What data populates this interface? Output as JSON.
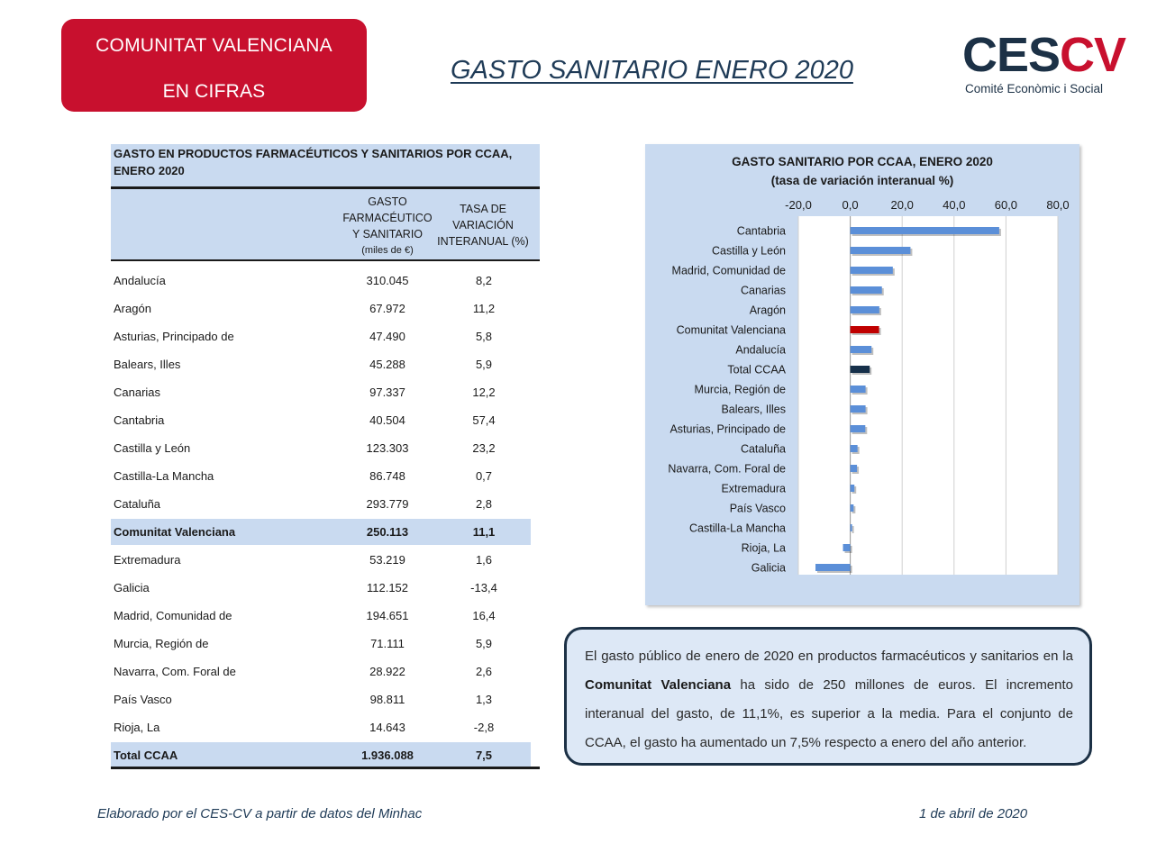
{
  "header": {
    "badge_line1": "COMUNITAT VALENCIANA",
    "badge_line2": "EN CIFRAS",
    "title": "GASTO SANITARIO ENERO 2020",
    "badge_color": "#c8102e"
  },
  "logo": {
    "mark_ces": "CES",
    "mark_cv": "CV",
    "subtitle": "Comité Econòmic i Social"
  },
  "table": {
    "title_line1": "GASTO EN PRODUCTOS FARMACÉUTICOS Y SANITARIOS POR CCAA,",
    "title_line2": "ENERO 2020",
    "col1_l1": "GASTO",
    "col1_l2": "FARMACÉUTICO",
    "col1_l3": "Y SANITARIO",
    "col1_l4": "(miles de €)",
    "col2_l1": "TASA DE",
    "col2_l2": "VARIACIÓN",
    "col2_l3": "INTERANUAL (%)",
    "rows": [
      {
        "region": "Andalucía",
        "gasto": "310.045",
        "tasa": "8,2"
      },
      {
        "region": "Aragón",
        "gasto": "67.972",
        "tasa": "11,2"
      },
      {
        "region": "Asturias, Principado de",
        "gasto": "47.490",
        "tasa": "5,8"
      },
      {
        "region": "Balears, Illes",
        "gasto": "45.288",
        "tasa": "5,9"
      },
      {
        "region": "Canarias",
        "gasto": "97.337",
        "tasa": "12,2"
      },
      {
        "region": "Cantabria",
        "gasto": "40.504",
        "tasa": "57,4"
      },
      {
        "region": "Castilla y León",
        "gasto": "123.303",
        "tasa": "23,2"
      },
      {
        "region": "Castilla-La Mancha",
        "gasto": "86.748",
        "tasa": "0,7"
      },
      {
        "region": "Cataluña",
        "gasto": "293.779",
        "tasa": "2,8"
      },
      {
        "region": "Comunitat Valenciana",
        "gasto": "250.113",
        "tasa": "11,1",
        "highlight": true
      },
      {
        "region": "Extremadura",
        "gasto": "53.219",
        "tasa": "1,6"
      },
      {
        "region": "Galicia",
        "gasto": "112.152",
        "tasa": "-13,4"
      },
      {
        "region": "Madrid, Comunidad de",
        "gasto": "194.651",
        "tasa": "16,4"
      },
      {
        "region": "Murcia, Región de",
        "gasto": "71.111",
        "tasa": "5,9"
      },
      {
        "region": "Navarra, Com. Foral de",
        "gasto": "28.922",
        "tasa": "2,6"
      },
      {
        "region": "País Vasco",
        "gasto": "98.811",
        "tasa": "1,3"
      },
      {
        "region": "Rioja, La",
        "gasto": "14.643",
        "tasa": "-2,8"
      },
      {
        "region": "Total CCAA",
        "gasto": "1.936.088",
        "tasa": "7,5",
        "highlight": true
      }
    ]
  },
  "chart_data": {
    "type": "bar",
    "orientation": "horizontal",
    "title": "GASTO SANITARIO POR CCAA, ENERO 2020",
    "subtitle": "(tasa de variación interanual %)",
    "xlim": [
      -20,
      80
    ],
    "xticks": [
      "-20,0",
      "0,0",
      "20,0",
      "40,0",
      "60,0",
      "80,0"
    ],
    "grid": true,
    "categories": [
      "Cantabria",
      "Castilla y León",
      "Madrid, Comunidad de",
      "Canarias",
      "Aragón",
      "Comunitat Valenciana",
      "Andalucía",
      "Total CCAA",
      "Murcia, Región de",
      "Balears, Illes",
      "Asturias, Principado de",
      "Cataluña",
      "Navarra, Com. Foral de",
      "Extremadura",
      "País Vasco",
      "Castilla-La Mancha",
      "Rioja, La",
      "Galicia"
    ],
    "values": [
      57.4,
      23.2,
      16.4,
      12.2,
      11.2,
      11.1,
      8.2,
      7.5,
      5.9,
      5.9,
      5.8,
      2.8,
      2.6,
      1.6,
      1.3,
      0.7,
      -2.8,
      -13.4
    ],
    "colors": {
      "default": "#5b8fd8",
      "Comunitat Valenciana": "#c00000",
      "Total CCAA": "#16304a"
    }
  },
  "summary": {
    "part1": "El gasto público de enero de 2020 en productos farmacéuticos y sanitarios en la ",
    "bold": "Comunitat Valenciana",
    "part2": " ha sido de 250 millones de euros. El incremento interanual del gasto, de 11,1%, es superior a la media. Para el conjunto de CCAA, el gasto ha aumentado un 7,5% respecto a enero del año anterior."
  },
  "footer": {
    "source": "Elaborado por el CES-CV a partir de datos del Minhac",
    "date": "1 de abril de 2020"
  }
}
